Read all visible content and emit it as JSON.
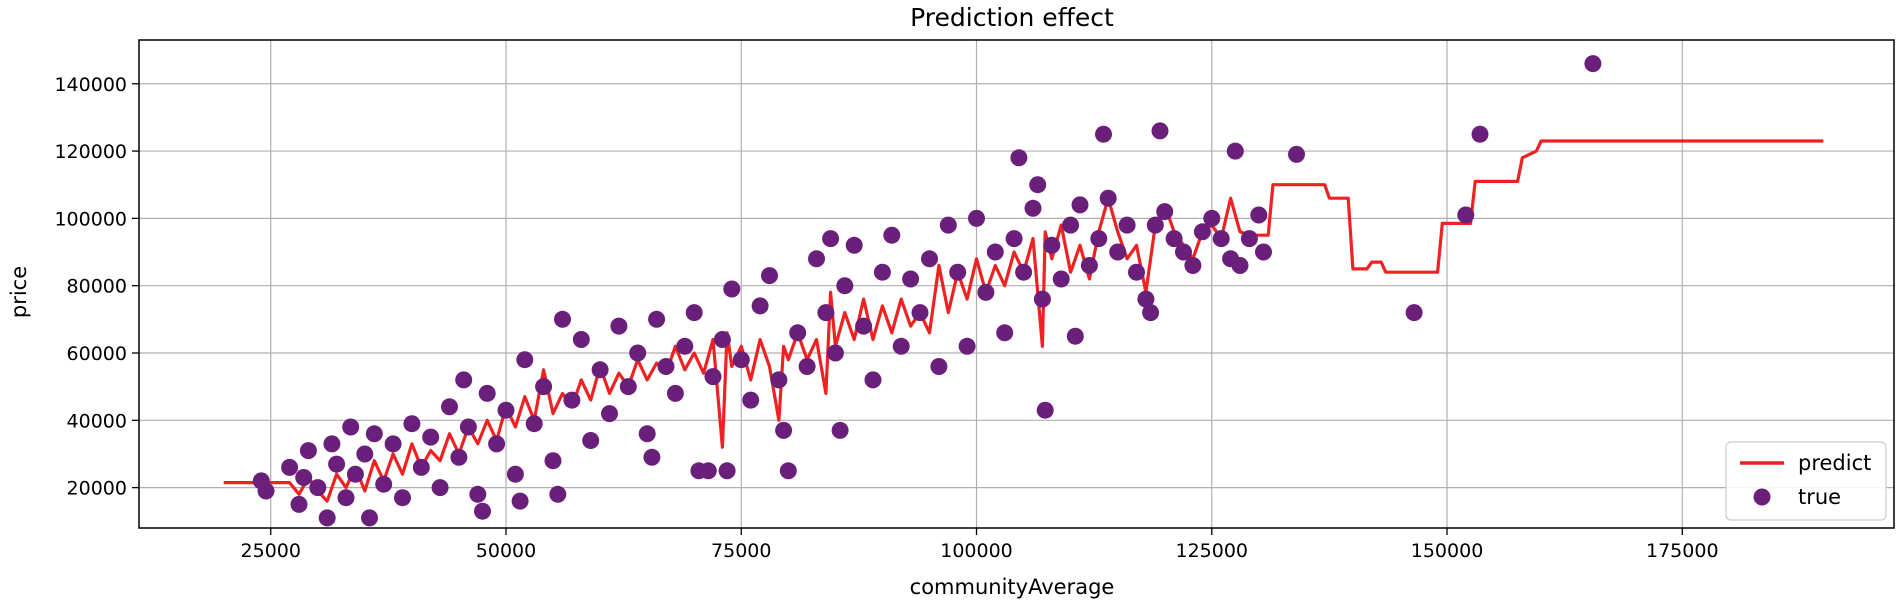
{
  "chart_data": {
    "type": "scatter",
    "title": "Prediction effect",
    "xlabel": "communityAverage",
    "ylabel": "price",
    "xlim": [
      11000,
      197500
    ],
    "ylim": [
      8000,
      153000
    ],
    "xticks": [
      25000,
      50000,
      75000,
      100000,
      125000,
      150000,
      175000
    ],
    "yticks": [
      20000,
      40000,
      60000,
      80000,
      100000,
      120000,
      140000
    ],
    "xtick_labels": [
      "25000",
      "50000",
      "75000",
      "100000",
      "125000",
      "150000",
      "175000"
    ],
    "ytick_labels": [
      "20000",
      "40000",
      "60000",
      "80000",
      "100000",
      "120000",
      "140000"
    ],
    "grid": true,
    "legend_position": "lower-right",
    "series": [
      {
        "name": "predict",
        "kind": "line",
        "color": "#ee2222",
        "points": [
          [
            20000,
            21500
          ],
          [
            27000,
            21500
          ],
          [
            28000,
            18000
          ],
          [
            29000,
            23000
          ],
          [
            30000,
            19000
          ],
          [
            31000,
            16000
          ],
          [
            32000,
            24000
          ],
          [
            33000,
            20000
          ],
          [
            34000,
            26000
          ],
          [
            35000,
            19000
          ],
          [
            36000,
            28000
          ],
          [
            37000,
            22000
          ],
          [
            38000,
            30000
          ],
          [
            39000,
            24000
          ],
          [
            40000,
            33000
          ],
          [
            41000,
            26000
          ],
          [
            42000,
            31000
          ],
          [
            43000,
            28000
          ],
          [
            44000,
            36000
          ],
          [
            45000,
            30000
          ],
          [
            46000,
            38000
          ],
          [
            47000,
            33000
          ],
          [
            48000,
            40000
          ],
          [
            49000,
            34000
          ],
          [
            50000,
            44000
          ],
          [
            51000,
            38000
          ],
          [
            52000,
            47000
          ],
          [
            53000,
            40000
          ],
          [
            54000,
            55000
          ],
          [
            55000,
            42000
          ],
          [
            56000,
            48000
          ],
          [
            57000,
            44000
          ],
          [
            58000,
            52000
          ],
          [
            59000,
            46000
          ],
          [
            60000,
            56000
          ],
          [
            61000,
            48000
          ],
          [
            62000,
            54000
          ],
          [
            63000,
            50000
          ],
          [
            64000,
            58000
          ],
          [
            65000,
            52000
          ],
          [
            66000,
            57000
          ],
          [
            67000,
            54000
          ],
          [
            68000,
            62000
          ],
          [
            69000,
            55000
          ],
          [
            70000,
            60000
          ],
          [
            71000,
            54000
          ],
          [
            72000,
            64000
          ],
          [
            73000,
            32000
          ],
          [
            73500,
            66000
          ],
          [
            74000,
            56000
          ],
          [
            75000,
            62000
          ],
          [
            76000,
            52000
          ],
          [
            77000,
            64000
          ],
          [
            78000,
            56000
          ],
          [
            79000,
            40000
          ],
          [
            79500,
            62000
          ],
          [
            80000,
            58000
          ],
          [
            81000,
            66000
          ],
          [
            82000,
            58000
          ],
          [
            83000,
            64000
          ],
          [
            84000,
            48000
          ],
          [
            84500,
            78000
          ],
          [
            85000,
            62000
          ],
          [
            86000,
            72000
          ],
          [
            87000,
            64000
          ],
          [
            88000,
            76000
          ],
          [
            89000,
            64000
          ],
          [
            90000,
            74000
          ],
          [
            91000,
            66000
          ],
          [
            92000,
            76000
          ],
          [
            93000,
            68000
          ],
          [
            94000,
            72000
          ],
          [
            95000,
            66000
          ],
          [
            96000,
            86000
          ],
          [
            97000,
            72000
          ],
          [
            98000,
            84000
          ],
          [
            99000,
            76000
          ],
          [
            100000,
            88000
          ],
          [
            101000,
            78000
          ],
          [
            102000,
            86000
          ],
          [
            103000,
            80000
          ],
          [
            104000,
            90000
          ],
          [
            105000,
            84000
          ],
          [
            106000,
            94000
          ],
          [
            107000,
            62000
          ],
          [
            107300,
            96000
          ],
          [
            108000,
            88000
          ],
          [
            109000,
            98000
          ],
          [
            110000,
            84000
          ],
          [
            111000,
            92000
          ],
          [
            112000,
            82000
          ],
          [
            113000,
            96000
          ],
          [
            114000,
            106000
          ],
          [
            115000,
            96000
          ],
          [
            116000,
            88000
          ],
          [
            117000,
            92000
          ],
          [
            118000,
            78000
          ],
          [
            119000,
            98000
          ],
          [
            120000,
            104000
          ],
          [
            121000,
            96000
          ],
          [
            122000,
            92000
          ],
          [
            123000,
            88000
          ],
          [
            124000,
            96000
          ],
          [
            125000,
            98000
          ],
          [
            126000,
            94000
          ],
          [
            127000,
            106000
          ],
          [
            128000,
            96000
          ],
          [
            129000,
            95000
          ],
          [
            131000,
            95000
          ],
          [
            131500,
            110000
          ],
          [
            137000,
            110000
          ],
          [
            137500,
            106000
          ],
          [
            139500,
            106000
          ],
          [
            140000,
            85000
          ],
          [
            141500,
            85000
          ],
          [
            142000,
            87000
          ],
          [
            143000,
            87000
          ],
          [
            143500,
            84000
          ],
          [
            149000,
            84000
          ],
          [
            149500,
            98500
          ],
          [
            152500,
            98500
          ],
          [
            153000,
            111000
          ],
          [
            157500,
            111000
          ],
          [
            158000,
            118000
          ],
          [
            159500,
            120000
          ],
          [
            160000,
            123000
          ],
          [
            190000,
            123000
          ]
        ]
      },
      {
        "name": "true",
        "kind": "scatter",
        "color": "#6a1f7b",
        "points": [
          [
            24000,
            22000
          ],
          [
            24500,
            19000
          ],
          [
            27000,
            26000
          ],
          [
            28000,
            15000
          ],
          [
            28500,
            23000
          ],
          [
            29000,
            31000
          ],
          [
            30000,
            20000
          ],
          [
            31000,
            11000
          ],
          [
            31500,
            33000
          ],
          [
            32000,
            27000
          ],
          [
            33000,
            17000
          ],
          [
            33500,
            38000
          ],
          [
            34000,
            24000
          ],
          [
            35000,
            30000
          ],
          [
            35500,
            11000
          ],
          [
            36000,
            36000
          ],
          [
            37000,
            21000
          ],
          [
            38000,
            33000
          ],
          [
            39000,
            17000
          ],
          [
            40000,
            39000
          ],
          [
            41000,
            26000
          ],
          [
            42000,
            35000
          ],
          [
            43000,
            20000
          ],
          [
            44000,
            44000
          ],
          [
            45000,
            29000
          ],
          [
            45500,
            52000
          ],
          [
            46000,
            38000
          ],
          [
            47000,
            18000
          ],
          [
            47500,
            13000
          ],
          [
            48000,
            48000
          ],
          [
            49000,
            33000
          ],
          [
            50000,
            43000
          ],
          [
            51000,
            24000
          ],
          [
            51500,
            16000
          ],
          [
            52000,
            58000
          ],
          [
            53000,
            39000
          ],
          [
            54000,
            50000
          ],
          [
            55000,
            28000
          ],
          [
            55500,
            18000
          ],
          [
            56000,
            70000
          ],
          [
            57000,
            46000
          ],
          [
            58000,
            64000
          ],
          [
            59000,
            34000
          ],
          [
            60000,
            55000
          ],
          [
            61000,
            42000
          ],
          [
            62000,
            68000
          ],
          [
            63000,
            50000
          ],
          [
            64000,
            60000
          ],
          [
            65000,
            36000
          ],
          [
            65500,
            29000
          ],
          [
            66000,
            70000
          ],
          [
            67000,
            56000
          ],
          [
            68000,
            48000
          ],
          [
            69000,
            62000
          ],
          [
            70000,
            72000
          ],
          [
            70500,
            25000
          ],
          [
            71500,
            25000
          ],
          [
            72000,
            53000
          ],
          [
            73000,
            64000
          ],
          [
            73500,
            25000
          ],
          [
            74000,
            79000
          ],
          [
            75000,
            58000
          ],
          [
            76000,
            46000
          ],
          [
            77000,
            74000
          ],
          [
            78000,
            83000
          ],
          [
            79000,
            52000
          ],
          [
            79500,
            37000
          ],
          [
            80000,
            25000
          ],
          [
            81000,
            66000
          ],
          [
            82000,
            56000
          ],
          [
            83000,
            88000
          ],
          [
            84000,
            72000
          ],
          [
            84500,
            94000
          ],
          [
            85000,
            60000
          ],
          [
            85500,
            37000
          ],
          [
            86000,
            80000
          ],
          [
            87000,
            92000
          ],
          [
            88000,
            68000
          ],
          [
            89000,
            52000
          ],
          [
            90000,
            84000
          ],
          [
            91000,
            95000
          ],
          [
            92000,
            62000
          ],
          [
            93000,
            82000
          ],
          [
            94000,
            72000
          ],
          [
            95000,
            88000
          ],
          [
            96000,
            56000
          ],
          [
            97000,
            98000
          ],
          [
            98000,
            84000
          ],
          [
            99000,
            62000
          ],
          [
            100000,
            100000
          ],
          [
            101000,
            78000
          ],
          [
            102000,
            90000
          ],
          [
            103000,
            66000
          ],
          [
            104000,
            94000
          ],
          [
            104500,
            118000
          ],
          [
            105000,
            84000
          ],
          [
            106000,
            103000
          ],
          [
            106500,
            110000
          ],
          [
            107000,
            76000
          ],
          [
            107300,
            43000
          ],
          [
            108000,
            92000
          ],
          [
            109000,
            82000
          ],
          [
            110000,
            98000
          ],
          [
            110500,
            65000
          ],
          [
            111000,
            104000
          ],
          [
            112000,
            86000
          ],
          [
            113000,
            94000
          ],
          [
            113500,
            125000
          ],
          [
            114000,
            106000
          ],
          [
            115000,
            90000
          ],
          [
            116000,
            98000
          ],
          [
            117000,
            84000
          ],
          [
            118000,
            76000
          ],
          [
            118500,
            72000
          ],
          [
            119000,
            98000
          ],
          [
            119500,
            126000
          ],
          [
            120000,
            102000
          ],
          [
            121000,
            94000
          ],
          [
            122000,
            90000
          ],
          [
            123000,
            86000
          ],
          [
            124000,
            96000
          ],
          [
            125000,
            100000
          ],
          [
            126000,
            94000
          ],
          [
            127000,
            88000
          ],
          [
            127500,
            120000
          ],
          [
            128000,
            86000
          ],
          [
            129000,
            94000
          ],
          [
            130000,
            101000
          ],
          [
            130500,
            90000
          ],
          [
            134000,
            119000
          ],
          [
            146500,
            72000
          ],
          [
            152000,
            101000
          ],
          [
            153500,
            125000
          ],
          [
            165500,
            146000
          ]
        ]
      }
    ]
  }
}
